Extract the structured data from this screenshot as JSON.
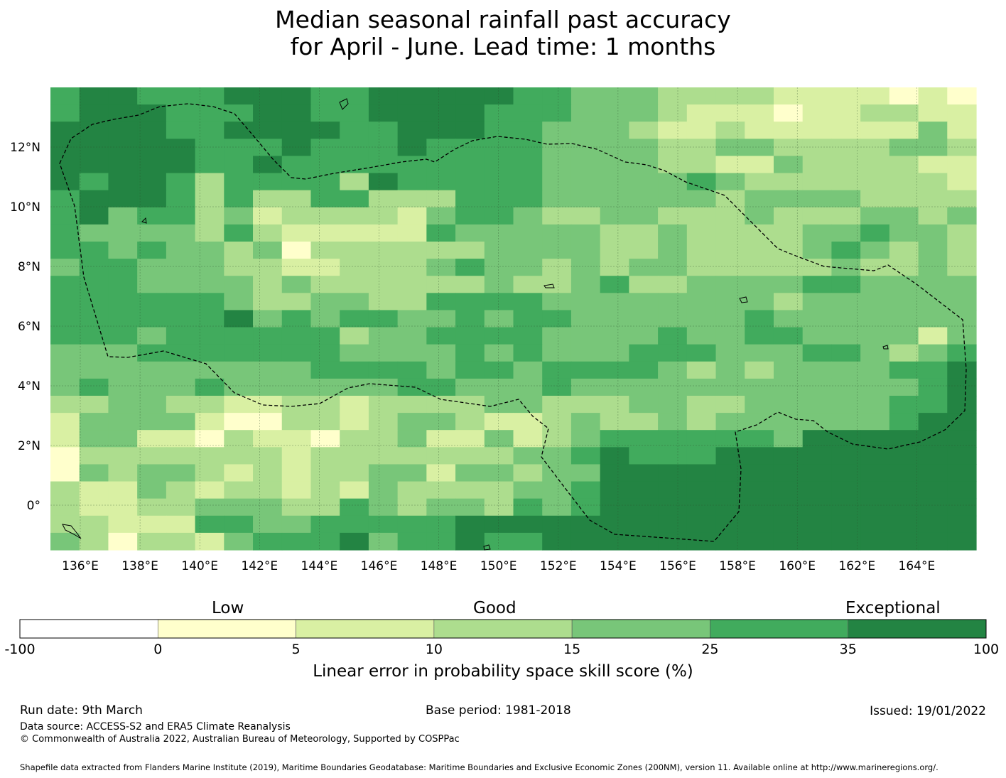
{
  "title": {
    "line1": "Median seasonal rainfall past accuracy",
    "line2": "for April - June. Lead time: 1 months"
  },
  "map": {
    "lon_labels": [
      "136°E",
      "138°E",
      "140°E",
      "142°E",
      "144°E",
      "146°E",
      "148°E",
      "150°E",
      "152°E",
      "154°E",
      "156°E",
      "158°E",
      "160°E",
      "162°E",
      "164°E"
    ],
    "lat_labels": [
      "12°N",
      "10°N",
      "8°N",
      "6°N",
      "4°N",
      "2°N",
      "0°"
    ],
    "palette": [
      "#ffffff",
      "#ffffcc",
      "#d9f0a3",
      "#addd8e",
      "#78c679",
      "#41ab5d",
      "#238443"
    ],
    "grid_class_rows": [
      "56655566655666665544433332222121",
      "56665556655666655544432221223322",
      "66665566665566655444322322222242",
      "66666555655565555444433443333443",
      "66666556555555555444433224333322",
      "65665355553655555444445433333332",
      "56665353355333555444444344443333",
      "56455342333324554334433343334434",
      "54444353222225444443343333445443",
      "55454434133333344443343333454343",
      "45544433223334544343443333343343",
      "55544443433333343345334444554444",
      "55555543344335555444444443444444",
      "55555564545544545544444454444444",
      "55545555553445555444454455444424",
      "44455555554444545444555444554345",
      "44444444455554554555543434444556",
      "45444544444455444544444444444456",
      "33443322332333344333443344444556",
      "24444211332344322343343444444566",
      "24422132213342242345555554666666",
      "13333333233333334456555666666666",
      "14344323233442443446666666666666",
      "32243233232433334456666666666666",
      "32233444335434435456666666666666",
      "33222554455555666666666666666666",
      "43133245556455655666666666666666"
    ],
    "eez_outline_color": "#000000"
  },
  "colorbar": {
    "category_labels": [
      "Low",
      "Good",
      "Exceptional"
    ],
    "boundaries": [
      "-100",
      "0",
      "5",
      "10",
      "15",
      "25",
      "35",
      "100"
    ],
    "colors": [
      "#ffffff",
      "#ffffcc",
      "#d9f0a3",
      "#addd8e",
      "#78c679",
      "#41ab5d",
      "#238443"
    ],
    "label": "Linear error in probability space skill score (%)"
  },
  "footer": {
    "run_date": "Run date: 9th March",
    "base_period": "Base period: 1981-2018",
    "issued": "Issued: 19/01/2022",
    "data_source": "Data source: ACCESS-S2 and ERA5 Climate Reanalysis",
    "copyright": "© Commonwealth of Australia 2022, Australian Bureau of Meteorology, Supported by COSPPac",
    "shapefile": "Shapefile data extracted from Flanders Marine Institute (2019), Maritime Boundaries Geodatabase: Maritime Boundaries and Exclusive Economic Zones (200NM), version 11. Available online at http://www.marineregions.org/."
  }
}
